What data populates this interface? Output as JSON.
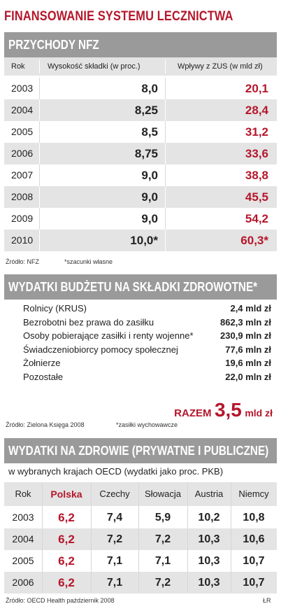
{
  "main_title": "FINANSOWANIE SYSTEMU LECZNICTWA",
  "section1": {
    "title": "PRZYCHODY NFZ",
    "headers": [
      "Rok",
      "Wysokość składki (w proc.)",
      "Wpływy z ZUS (w mld zł)"
    ],
    "rows": [
      {
        "year": "2003",
        "rate": "8,0",
        "zus": "20,1"
      },
      {
        "year": "2004",
        "rate": "8,25",
        "zus": "28,4"
      },
      {
        "year": "2005",
        "rate": "8,5",
        "zus": "31,2"
      },
      {
        "year": "2006",
        "rate": "8,75",
        "zus": "33,6"
      },
      {
        "year": "2007",
        "rate": "9,0",
        "zus": "38,8"
      },
      {
        "year": "2008",
        "rate": "9,0",
        "zus": "45,5"
      },
      {
        "year": "2009",
        "rate": "9,0",
        "zus": "54,2"
      },
      {
        "year": "2010",
        "rate": "10,0*",
        "zus": "60,3*"
      }
    ],
    "source": "Źródło: NFZ",
    "note": "*szacunki własne"
  },
  "section2": {
    "title": "WYDATKI BUDŻETU NA SKŁADKI ZDROWOTNE*",
    "items": [
      {
        "label": "Rolnicy (KRUS)",
        "value": "2,4 mld zł"
      },
      {
        "label": "Bezrobotni bez prawa do zasiłku",
        "value": "862,3 mln zł"
      },
      {
        "label": "Osoby pobierające zasiłki i renty wojenne*",
        "value": "230,9 mln zł"
      },
      {
        "label": "Świadczeniobiorcy pomocy społecznej",
        "value": "77,6 mln zł"
      },
      {
        "label": "Żołnierze",
        "value": "19,6 mln zł"
      },
      {
        "label": "Pozostałe",
        "value": "22,0 mln zł"
      }
    ],
    "total_label": "RAZEM",
    "total_value": "3,5",
    "total_unit": "mld zł",
    "source": "Źródło: Zielona Księga 2008",
    "note": "*zasiłki wychowawcze"
  },
  "section3": {
    "title": "WYDATKI NA ZDROWIE (PRYWATNE I PUBLICZNE)",
    "subtitle": "w wybranych krajach OECD (wydatki jako proc. PKB)",
    "headers": [
      "Rok",
      "Polska",
      "Czechy",
      "Słowacja",
      "Austria",
      "Niemcy"
    ],
    "rows": [
      {
        "year": "2003",
        "values": [
          "6,2",
          "7,4",
          "5,9",
          "10,2",
          "10,8"
        ]
      },
      {
        "year": "2004",
        "values": [
          "6,2",
          "7,2",
          "7,2",
          "10,3",
          "10,6"
        ]
      },
      {
        "year": "2005",
        "values": [
          "6,2",
          "7,1",
          "7,1",
          "10,3",
          "10,7"
        ]
      },
      {
        "year": "2006",
        "values": [
          "6,2",
          "7,1",
          "7,2",
          "10,3",
          "10,7"
        ]
      }
    ],
    "source": "Źródło: OECD Health październik 2008",
    "credit": "ŁR"
  },
  "colors": {
    "accent": "#b5162b",
    "bar": "#9a9a9a",
    "stripe": "#e4e4e4"
  },
  "chart_data": [
    {
      "type": "table",
      "title": "PRZYCHODY NFZ",
      "columns": [
        "Rok",
        "Wysokość składki (w proc.)",
        "Wpływy z ZUS (w mld zł)"
      ],
      "categories": [
        "2003",
        "2004",
        "2005",
        "2006",
        "2007",
        "2008",
        "2009",
        "2010"
      ],
      "series": [
        {
          "name": "Wysokość składki (w proc.)",
          "values": [
            8.0,
            8.25,
            8.5,
            8.75,
            9.0,
            9.0,
            9.0,
            10.0
          ]
        },
        {
          "name": "Wpływy z ZUS (w mld zł)",
          "values": [
            20.1,
            28.4,
            31.2,
            33.6,
            38.8,
            45.5,
            54.2,
            60.3
          ]
        }
      ]
    },
    {
      "type": "table",
      "title": "WYDATKI BUDŻETU NA SKŁADKI ZDROWOTNE*",
      "categories": [
        "Rolnicy (KRUS)",
        "Bezrobotni bez prawa do zasiłku",
        "Osoby pobierające zasiłki i renty wojenne*",
        "Świadczeniobiorcy pomocy społecznej",
        "Żołnierze",
        "Pozostałe"
      ],
      "values": [
        "2,4 mld zł",
        "862,3 mln zł",
        "230,9 mln zł",
        "77,6 mln zł",
        "19,6 mln zł",
        "22,0 mln zł"
      ]
    },
    {
      "type": "table",
      "title": "WYDATKI NA ZDROWIE (PRYWATNE I PUBLICZNE)",
      "categories": [
        "2003",
        "2004",
        "2005",
        "2006"
      ],
      "series": [
        {
          "name": "Polska",
          "values": [
            6.2,
            6.2,
            6.2,
            6.2
          ]
        },
        {
          "name": "Czechy",
          "values": [
            7.4,
            7.2,
            7.1,
            7.1
          ]
        },
        {
          "name": "Słowacja",
          "values": [
            5.9,
            7.2,
            7.1,
            7.2
          ]
        },
        {
          "name": "Austria",
          "values": [
            10.2,
            10.3,
            10.3,
            10.3
          ]
        },
        {
          "name": "Niemcy",
          "values": [
            10.8,
            10.6,
            10.7,
            10.7
          ]
        }
      ]
    }
  ]
}
